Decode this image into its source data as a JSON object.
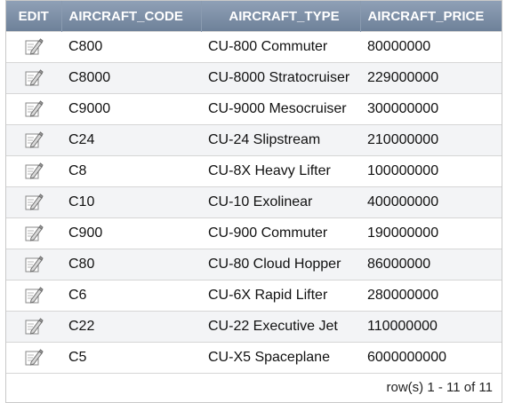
{
  "table": {
    "headers": {
      "edit": "EDIT",
      "code": "AIRCRAFT_CODE",
      "type": "AIRCRAFT_TYPE",
      "price": "AIRCRAFT_PRICE"
    },
    "edit_icon": "pencil-edit-icon",
    "rows": [
      {
        "code": "C800",
        "type": "CU-800 Commuter",
        "price": "80000000"
      },
      {
        "code": "C8000",
        "type": "CU-8000 Stratocruiser",
        "price": "229000000"
      },
      {
        "code": "C9000",
        "type": "CU-9000 Mesocruiser",
        "price": "300000000"
      },
      {
        "code": "C24",
        "type": "CU-24 Slipstream",
        "price": "210000000"
      },
      {
        "code": "C8",
        "type": "CU-8X Heavy Lifter",
        "price": "100000000"
      },
      {
        "code": "C10",
        "type": "CU-10 Exolinear",
        "price": "400000000"
      },
      {
        "code": "C900",
        "type": "CU-900 Commuter",
        "price": "190000000"
      },
      {
        "code": "C80",
        "type": "CU-80 Cloud Hopper",
        "price": "86000000"
      },
      {
        "code": "C6",
        "type": "CU-6X Rapid Lifter",
        "price": "280000000"
      },
      {
        "code": "C22",
        "type": "CU-22 Executive Jet",
        "price": "110000000"
      },
      {
        "code": "C5",
        "type": "CU-X5 Spaceplane",
        "price": "6000000000"
      }
    ]
  },
  "pagination": {
    "label": "row(s) 1 - 11 of 11"
  },
  "colors": {
    "header_bg": "#7d8fa6",
    "header_text": "#ffffff",
    "row_alt": "#f3f4f6",
    "border": "#d6d6d6"
  }
}
